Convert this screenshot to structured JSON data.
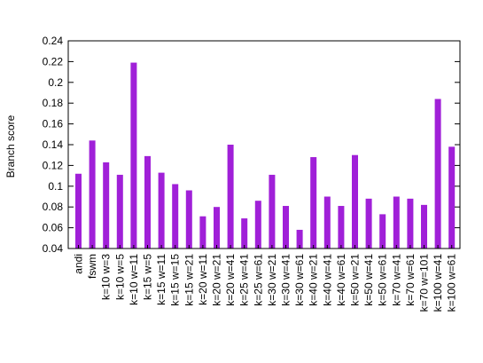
{
  "chart_data": {
    "type": "bar",
    "ylabel": "Branch score",
    "xlabel": "",
    "ylim": [
      0.04,
      0.24
    ],
    "yticks": [
      "0.04",
      "0.06",
      "0.08",
      "0.1",
      "0.12",
      "0.14",
      "0.16",
      "0.18",
      "0.2",
      "0.22",
      "0.24"
    ],
    "grid": false,
    "bar_color": "#a020d8",
    "categories": [
      "andi",
      "fswm",
      "k=10 w=3",
      "k=10 w=5",
      "k=10 w=11",
      "k=15 w=5",
      "k=15 w=11",
      "k=15 w=15",
      "k=15 w=21",
      "k=20 w=11",
      "k=20 w=21",
      "k=20 w=41",
      "k=25 w=41",
      "k=25 w=61",
      "k=30 w=21",
      "k=30 w=41",
      "k=30 w=61",
      "k=40 w=21",
      "k=40 w=41",
      "k=40 w=61",
      "k=50 w=21",
      "k=50 w=41",
      "k=50 w=61",
      "k=70 w=41",
      "k=70 w=61",
      "k=70 w=101",
      "k=100 w=41",
      "k=100 w=61"
    ],
    "values": [
      0.112,
      0.144,
      0.123,
      0.111,
      0.219,
      0.129,
      0.113,
      0.102,
      0.096,
      0.071,
      0.08,
      0.14,
      0.069,
      0.086,
      0.111,
      0.081,
      0.058,
      0.128,
      0.09,
      0.081,
      0.13,
      0.088,
      0.073,
      0.09,
      0.088,
      0.082,
      0.184,
      0.138
    ]
  }
}
